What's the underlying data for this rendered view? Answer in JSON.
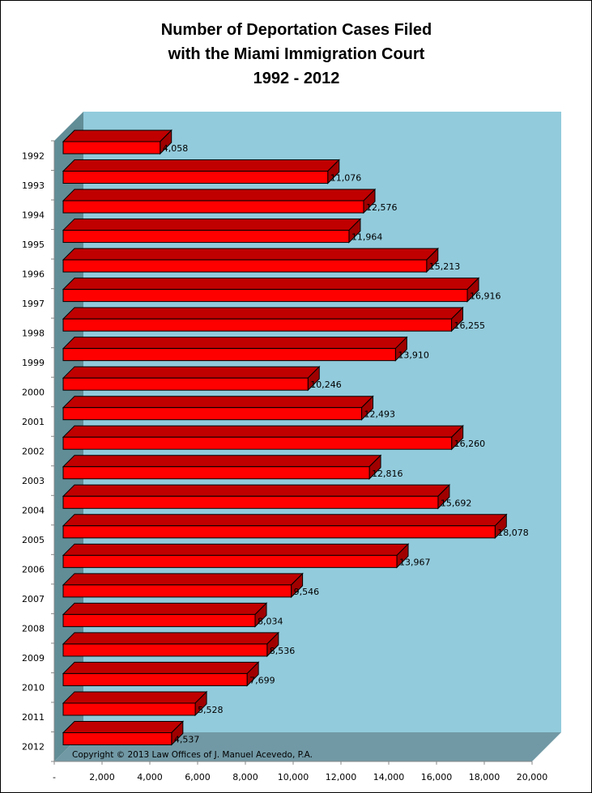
{
  "chart_data": {
    "type": "bar",
    "orientation": "horizontal",
    "style": "3d",
    "title": [
      "Number of Deportation Cases Filed",
      "with the Miami Immigration Court",
      "1992 - 2012"
    ],
    "categories": [
      "1992",
      "1993",
      "1994",
      "1995",
      "1996",
      "1997",
      "1998",
      "1999",
      "2000",
      "2001",
      "2002",
      "2003",
      "2004",
      "2005",
      "2006",
      "2007",
      "2008",
      "2009",
      "2010",
      "2011",
      "2012"
    ],
    "values": [
      4058,
      11076,
      12576,
      11964,
      15213,
      16916,
      16255,
      13910,
      10246,
      12493,
      16260,
      12816,
      15692,
      18078,
      13967,
      9546,
      8034,
      8536,
      7699,
      5528,
      4537
    ],
    "data_labels": [
      "4,058",
      "11,076",
      "12,576",
      "11,964",
      "15,213",
      "16,916",
      "16,255",
      "13,910",
      "10,246",
      "12,493",
      "16,260",
      "12,816",
      "15,692",
      "18,078",
      "13,967",
      "9,546",
      "8,034",
      "8,536",
      "7,699",
      "5,528",
      "4,537"
    ],
    "xlim": [
      0,
      20000
    ],
    "x_ticks": [
      "-",
      "2,000",
      "4,000",
      "6,000",
      "8,000",
      "10,000",
      "12,000",
      "14,000",
      "16,000",
      "18,000",
      "20,000"
    ],
    "grid": false,
    "legend": "none",
    "annotation": "Copyright © 2013 Law Offices of J. Manuel Acevedo, P.A.",
    "colors": {
      "bar_front": "#FF0000",
      "bar_top": "#C00000",
      "bar_side": "#A00000",
      "back_wall": "#92CBDC",
      "side_wall": "#618D97",
      "floor": "#7199A5"
    }
  }
}
